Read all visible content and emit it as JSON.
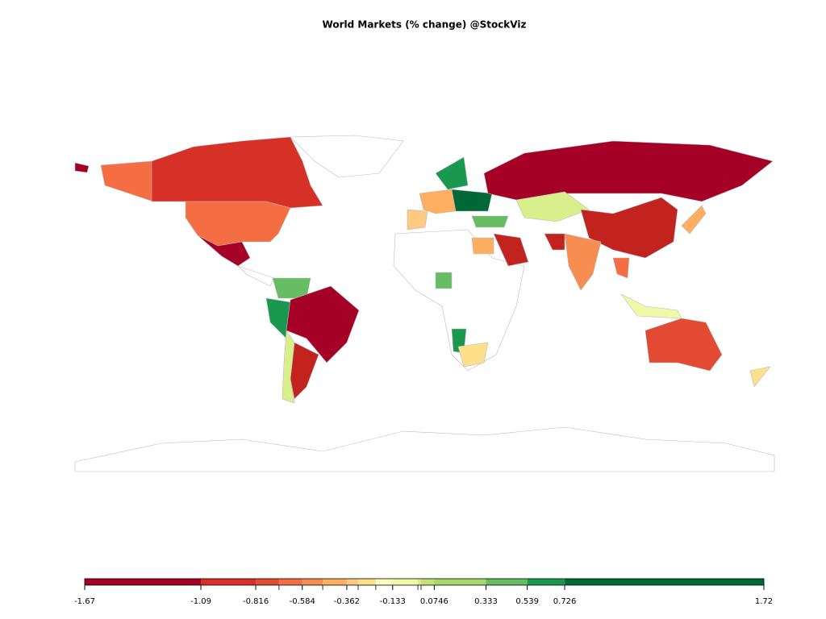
{
  "chart_data": {
    "type": "choropleth",
    "title": "World Markets (% change) @StockViz",
    "xlim": [
      -1.67,
      1.72
    ],
    "xticks": [
      -1.67,
      -1.09,
      -0.816,
      -0.584,
      -0.362,
      -0.133,
      0.0746,
      0.333,
      0.539,
      0.726,
      1.72
    ],
    "breaks": [
      -1.67,
      -1.09,
      -0.816,
      -0.7,
      -0.584,
      -0.482,
      -0.362,
      -0.305,
      -0.217,
      -0.133,
      -0.007,
      0.009,
      0.0746,
      0.333,
      0.539,
      0.726,
      1.72
    ],
    "colors": [
      "#a50026",
      "#d73027",
      "#e34a33",
      "#f46d43",
      "#f88d52",
      "#fdae61",
      "#fec980",
      "#fee08b",
      "#ffffbf",
      "#f0f9a8",
      "#d9ef8b",
      "#c2e37a",
      "#a6d96a",
      "#66bd63",
      "#1a9850",
      "#006837"
    ]
  }
}
